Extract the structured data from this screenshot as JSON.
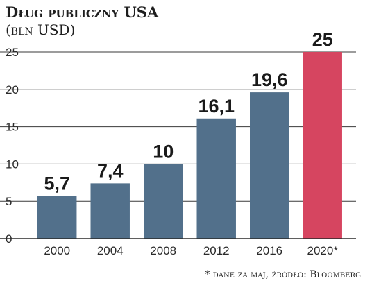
{
  "chart_data": {
    "type": "bar",
    "title": "Dług publiczny USA",
    "subtitle": "(bln USD)",
    "categories": [
      "2000",
      "2004",
      "2008",
      "2012",
      "2016",
      "2020*"
    ],
    "values": [
      5.7,
      7.4,
      10,
      16.1,
      19.6,
      25
    ],
    "value_labels": [
      "5,7",
      "7,4",
      "10",
      "16,1",
      "19,6",
      "25"
    ],
    "yticks": [
      0,
      5,
      10,
      15,
      20,
      25
    ],
    "ylim": [
      0,
      25
    ],
    "grid": true,
    "colors": {
      "default": "#52708b",
      "highlight": "#d64560"
    },
    "highlight_index": 5,
    "footnote": "* dane za maj, źródło: Bloomberg"
  }
}
